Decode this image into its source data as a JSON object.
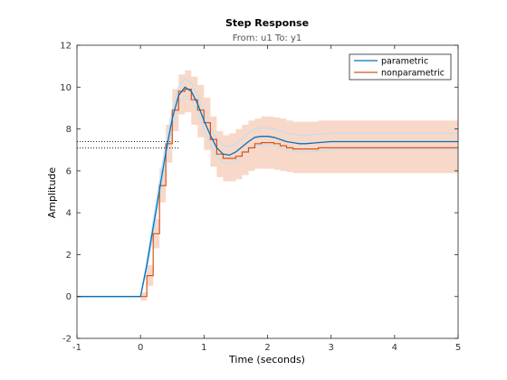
{
  "chart_data": {
    "type": "line",
    "title": "Step Response",
    "subtitle": "From: u1  To: y1",
    "xlabel": "Time (seconds)",
    "ylabel": "Amplitude",
    "xlim": [
      -1,
      5
    ],
    "ylim": [
      -2,
      12
    ],
    "xticks": [
      -1,
      0,
      1,
      2,
      3,
      4,
      5
    ],
    "yticks": [
      -2,
      0,
      2,
      4,
      6,
      8,
      10,
      12
    ],
    "legend_position": "top-right",
    "grid": false,
    "colors": {
      "parametric": "#0072bd",
      "parametric_band": "#bfe0f2",
      "nonparametric": "#d95319",
      "nonparametric_band": "#f8d8c9",
      "steady_state_lines": "#000000"
    },
    "series": [
      {
        "name": "parametric",
        "style": "line",
        "x": [
          -1,
          0,
          0.1,
          0.2,
          0.3,
          0.4,
          0.5,
          0.6,
          0.7,
          0.8,
          0.9,
          1.0,
          1.1,
          1.2,
          1.3,
          1.4,
          1.5,
          1.6,
          1.7,
          1.8,
          1.9,
          2.0,
          2.1,
          2.2,
          2.3,
          2.4,
          2.5,
          2.6,
          2.8,
          3.0,
          3.2,
          3.5,
          4.0,
          4.5,
          5.0
        ],
        "y": [
          0,
          0,
          1.5,
          3.3,
          5.1,
          6.9,
          8.5,
          9.6,
          10.0,
          9.8,
          9.2,
          8.4,
          7.7,
          7.1,
          6.8,
          6.75,
          6.9,
          7.15,
          7.4,
          7.6,
          7.65,
          7.65,
          7.6,
          7.5,
          7.4,
          7.35,
          7.3,
          7.3,
          7.35,
          7.4,
          7.4,
          7.4,
          7.4,
          7.4,
          7.4
        ],
        "band_lower": [
          0,
          0,
          1.3,
          3.0,
          4.7,
          6.5,
          8.1,
          9.2,
          9.6,
          9.4,
          8.8,
          8.0,
          7.3,
          6.7,
          6.4,
          6.35,
          6.5,
          6.75,
          7.0,
          7.2,
          7.25,
          7.25,
          7.2,
          7.1,
          7.0,
          6.95,
          6.9,
          6.9,
          6.95,
          7.0,
          7.0,
          7.0,
          7.0,
          7.0,
          7.0
        ],
        "band_upper": [
          0,
          0,
          1.7,
          3.6,
          5.5,
          7.3,
          8.9,
          10.0,
          10.4,
          10.2,
          9.6,
          8.8,
          8.1,
          7.5,
          7.2,
          7.15,
          7.3,
          7.55,
          7.8,
          8.0,
          8.05,
          8.05,
          8.0,
          7.9,
          7.8,
          7.75,
          7.7,
          7.7,
          7.75,
          7.8,
          7.8,
          7.8,
          7.8,
          7.8,
          7.8
        ],
        "steady_state": 7.4
      },
      {
        "name": "nonparametric",
        "style": "stairs",
        "x": [
          -1,
          0.0,
          0.1,
          0.2,
          0.3,
          0.4,
          0.5,
          0.6,
          0.7,
          0.8,
          0.9,
          1.0,
          1.1,
          1.2,
          1.3,
          1.4,
          1.5,
          1.6,
          1.7,
          1.8,
          1.9,
          2.0,
          2.1,
          2.2,
          2.3,
          2.4,
          2.5,
          2.6,
          2.8,
          3.0,
          3.2,
          3.5,
          4.0,
          4.5
        ],
        "y": [
          0,
          0.0,
          1.0,
          3.0,
          5.3,
          7.3,
          8.9,
          9.8,
          9.9,
          9.4,
          8.9,
          8.3,
          7.5,
          6.8,
          6.6,
          6.6,
          6.7,
          6.9,
          7.1,
          7.3,
          7.35,
          7.35,
          7.3,
          7.2,
          7.1,
          7.05,
          7.05,
          7.05,
          7.1,
          7.1,
          7.1,
          7.1,
          7.1,
          7.1
        ],
        "band_lower": [
          0,
          -0.2,
          0.5,
          2.3,
          4.5,
          6.4,
          7.9,
          8.7,
          8.8,
          8.2,
          7.6,
          7.0,
          6.2,
          5.7,
          5.5,
          5.5,
          5.6,
          5.8,
          6.0,
          6.1,
          6.1,
          6.1,
          6.05,
          6.0,
          5.95,
          5.9,
          5.9,
          5.9,
          5.9,
          5.9,
          5.9,
          5.9,
          5.9,
          5.9
        ],
        "band_upper": [
          0,
          0.2,
          1.5,
          3.7,
          6.1,
          8.2,
          9.9,
          10.6,
          10.8,
          10.5,
          10.1,
          9.5,
          8.6,
          7.9,
          7.7,
          7.8,
          8.0,
          8.2,
          8.4,
          8.5,
          8.6,
          8.6,
          8.55,
          8.5,
          8.4,
          8.35,
          8.35,
          8.35,
          8.4,
          8.4,
          8.4,
          8.4,
          8.4,
          8.4
        ],
        "steady_state": 7.1
      }
    ]
  }
}
